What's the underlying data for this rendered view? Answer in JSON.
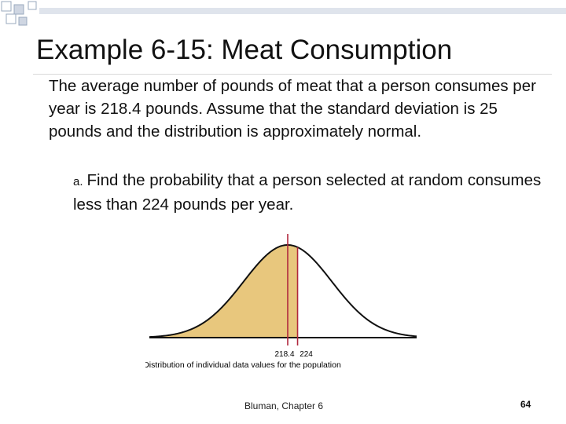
{
  "slide": {
    "title": "Example 6-15: Meat Consumption",
    "paragraph": "The average number of pounds of meat that a person consumes per year is 218.4 pounds.  Assume that the standard deviation is 25 pounds and the distribution is approximately normal.",
    "part_marker": "a.",
    "part_text": "Find the probability that a person selected at random consumes less than 224 pounds per year."
  },
  "figure": {
    "label_mean": "218.4",
    "label_value": "224",
    "caption": "Distribution of individual data values for the population",
    "mean": 218.4,
    "sd": 25,
    "shade_below": 224,
    "colors": {
      "fill": "#e8c77d",
      "curve": "#111111",
      "marker_line": "#b0283e",
      "axis": "#111111"
    }
  },
  "footer": {
    "source": "Bluman, Chapter 6",
    "page": "64"
  },
  "decoration": {
    "colors": {
      "square_outline": "#9aa8bd",
      "square_fill": "#cfd6e2"
    }
  }
}
